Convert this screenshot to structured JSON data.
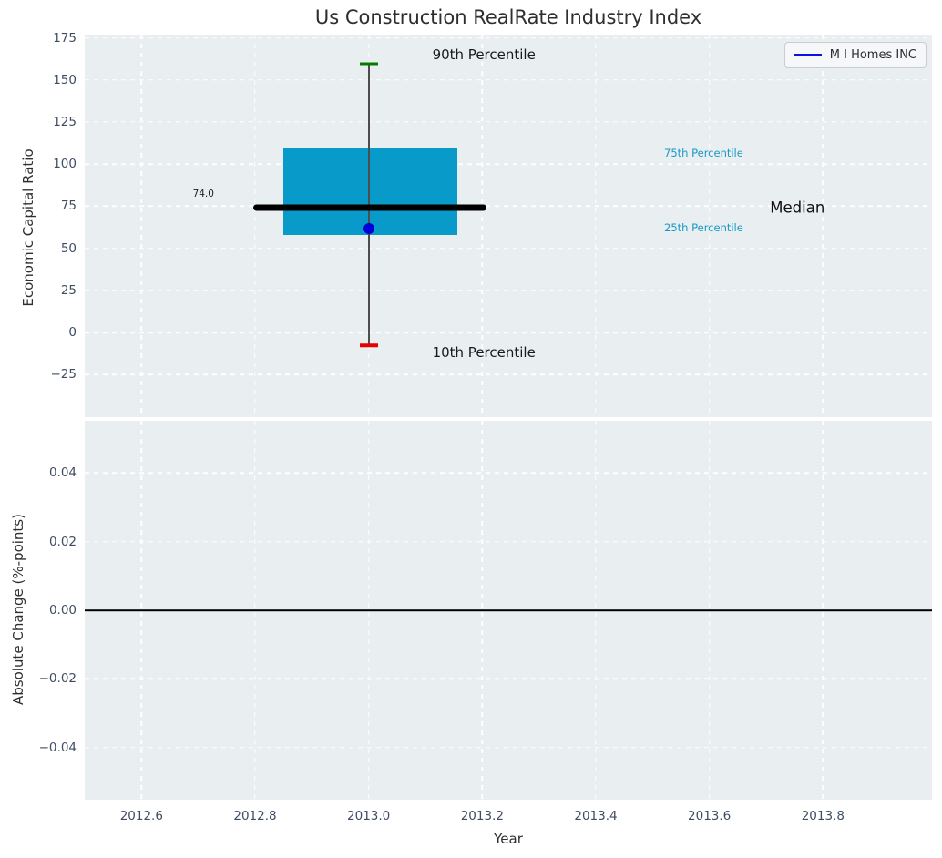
{
  "title": "Us Construction RealRate Industry Index",
  "legend": {
    "label": "M I Homes INC",
    "line_color": "#0f0fe8"
  },
  "colors": {
    "plot_background": "#e9eef1",
    "gridline": "#ffffff",
    "tick_text": "#3f4d63",
    "box_fill": "#089bc9",
    "median_line": "#000000",
    "whisker_line": "#4d4d4d",
    "p90_cap": "#007d00",
    "p10_cap": "#e80000",
    "company_dot": "#0000d6",
    "percentile_text": "#1899c4"
  },
  "chart_data": [
    {
      "id": "top",
      "type": "box",
      "ylabel": "Economic Capital Ratio",
      "xlim": [
        2012.5,
        2013.992
      ],
      "ylim": [
        -50.3,
        176.9
      ],
      "grid": true,
      "show_xlabels": false,
      "xticks": [
        {
          "v": 2012.6
        },
        {
          "v": 2012.8
        },
        {
          "v": 2013.0
        },
        {
          "v": 2013.2
        },
        {
          "v": 2013.4
        },
        {
          "v": 2013.6
        },
        {
          "v": 2013.8
        }
      ],
      "yticks": [
        {
          "v": 175,
          "label": "175"
        },
        {
          "v": 150,
          "label": "150"
        },
        {
          "v": 125,
          "label": "125"
        },
        {
          "v": 100,
          "label": "100"
        },
        {
          "v": 75,
          "label": "75"
        },
        {
          "v": 50,
          "label": "50"
        },
        {
          "v": 25,
          "label": "25"
        },
        {
          "v": 0,
          "label": "0"
        },
        {
          "v": -25,
          "label": "−25"
        }
      ],
      "box": {
        "x_center": 2013.0,
        "x_left": 2012.85,
        "x_right": 2013.156,
        "q1": 57.7,
        "q3": 110.0,
        "median": 74.0,
        "median_x0": 2012.797,
        "median_x1": 2013.207,
        "p90": 159.8,
        "p10": -7.6,
        "cap_half": 0.016,
        "company": {
          "name": "M I Homes INC",
          "x": 2013.0,
          "y": 61.7
        }
      },
      "annotations": [
        {
          "name": "p90-label",
          "text": "90th Percentile",
          "x": 2013.203,
          "y": 165.0,
          "color": "#1a1a1a",
          "size": 15
        },
        {
          "name": "p10-label",
          "text": "10th Percentile",
          "x": 2013.203,
          "y": -12.0,
          "color": "#1a1a1a",
          "size": 15
        },
        {
          "name": "p75-label",
          "text": "75th Percentile",
          "x": 2013.59,
          "y": 106.5,
          "color": "#1899c4",
          "size": 11.5
        },
        {
          "name": "p25-label",
          "text": "25th Percentile",
          "x": 2013.59,
          "y": 62.3,
          "color": "#1899c4",
          "size": 11.5
        },
        {
          "name": "median-label",
          "text": "Median",
          "x": 2013.755,
          "y": 74.0,
          "color": "#111111",
          "size": 16.5
        },
        {
          "name": "median-value-label",
          "text": "74.0",
          "x": 2012.709,
          "y": 82.5,
          "color": "#222222",
          "size": 10.5
        }
      ]
    },
    {
      "id": "bottom",
      "type": "line",
      "ylabel": "Absolute Change (%-points)",
      "xlabel": "Year",
      "xlim": [
        2012.5,
        2013.992
      ],
      "ylim": [
        -0.0552,
        0.0552
      ],
      "grid": true,
      "show_xlabels": true,
      "zero_line": 0.0,
      "xticks": [
        {
          "v": 2012.6,
          "label": "2012.6"
        },
        {
          "v": 2012.8,
          "label": "2012.8"
        },
        {
          "v": 2013.0,
          "label": "2013.0"
        },
        {
          "v": 2013.2,
          "label": "2013.2"
        },
        {
          "v": 2013.4,
          "label": "2013.4"
        },
        {
          "v": 2013.6,
          "label": "2013.6"
        },
        {
          "v": 2013.8,
          "label": "2013.8"
        }
      ],
      "yticks": [
        {
          "v": 0.04,
          "label": "0.04"
        },
        {
          "v": 0.02,
          "label": "0.02"
        },
        {
          "v": 0.0,
          "label": "0.00"
        },
        {
          "v": -0.02,
          "label": "−0.02"
        },
        {
          "v": -0.04,
          "label": "−0.04"
        }
      ]
    }
  ]
}
